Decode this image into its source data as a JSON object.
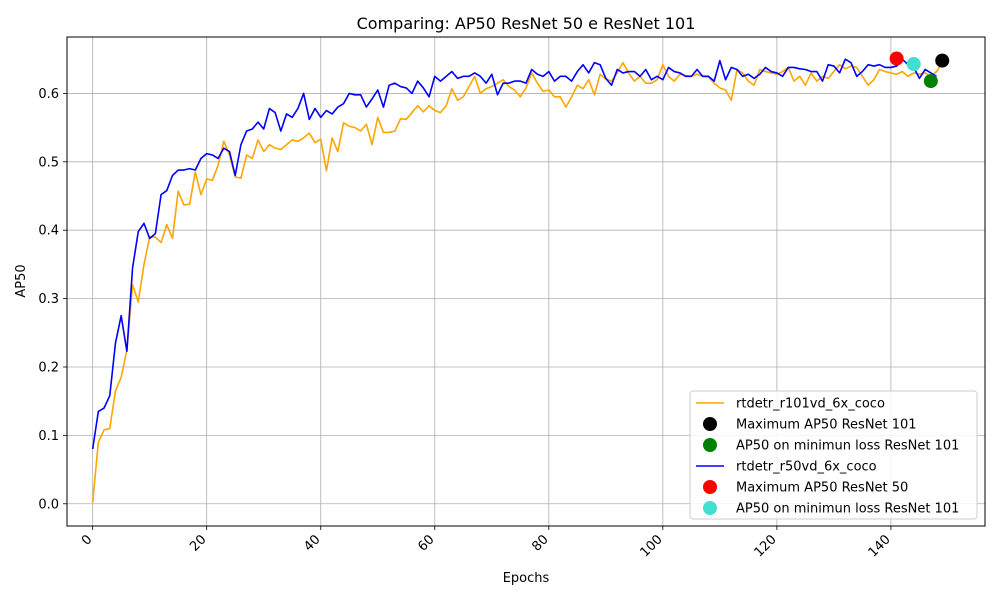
{
  "chart_data": {
    "type": "line",
    "title": "Comparing: AP50 ResNet 50 e ResNet 101",
    "xlabel": "Epochs",
    "ylabel": "AP50",
    "xlim": [
      -4.5,
      156.5
    ],
    "ylim": [
      -0.0325,
      0.6825
    ],
    "xticks": [
      0,
      20,
      40,
      60,
      80,
      100,
      120,
      140
    ],
    "yticks": [
      0.0,
      0.1,
      0.2,
      0.3,
      0.4,
      0.5,
      0.6
    ],
    "xtick_labels": [
      "0",
      "20",
      "40",
      "60",
      "80",
      "100",
      "120",
      "140"
    ],
    "ytick_labels": [
      "0.0",
      "0.1",
      "0.2",
      "0.3",
      "0.4",
      "0.5",
      "0.6"
    ],
    "grid": true,
    "legend_position": "lower-right",
    "series": [
      {
        "name": "rtdetr_r101vd_6x_coco",
        "kind": "line",
        "color": "#ffa500",
        "x": [
          0,
          1,
          2,
          3,
          4,
          5,
          6,
          7,
          8,
          9,
          10,
          11,
          12,
          13,
          14,
          15,
          16,
          17,
          18,
          19,
          20,
          21,
          22,
          23,
          24,
          25,
          26,
          27,
          28,
          29,
          30,
          31,
          32,
          33,
          34,
          35,
          36,
          37,
          38,
          39,
          40,
          41,
          42,
          43,
          44,
          45,
          46,
          47,
          48,
          49,
          50,
          51,
          52,
          53,
          54,
          55,
          56,
          57,
          58,
          59,
          60,
          61,
          62,
          63,
          64,
          65,
          66,
          67,
          68,
          69,
          70,
          71,
          72,
          73,
          74,
          75,
          76,
          77,
          78,
          79,
          80,
          81,
          82,
          83,
          84,
          85,
          86,
          87,
          88,
          89,
          90,
          91,
          92,
          93,
          94,
          95,
          96,
          97,
          98,
          99,
          100,
          101,
          102,
          103,
          104,
          105,
          106,
          107,
          108,
          109,
          110,
          111,
          112,
          113,
          114,
          115,
          116,
          117,
          118,
          119,
          120,
          121,
          122,
          123,
          124,
          125,
          126,
          127,
          128,
          129,
          130,
          131,
          132,
          133,
          134,
          135,
          136,
          137,
          138,
          139,
          140,
          141,
          142,
          143,
          144,
          145,
          146,
          147,
          148,
          149
        ],
        "values": [
          0.002,
          0.09,
          0.108,
          0.11,
          0.165,
          0.185,
          0.225,
          0.32,
          0.295,
          0.35,
          0.39,
          0.39,
          0.382,
          0.408,
          0.388,
          0.457,
          0.437,
          0.438,
          0.485,
          0.452,
          0.475,
          0.473,
          0.495,
          0.53,
          0.51,
          0.478,
          0.476,
          0.51,
          0.505,
          0.532,
          0.515,
          0.525,
          0.52,
          0.518,
          0.525,
          0.532,
          0.53,
          0.535,
          0.542,
          0.528,
          0.533,
          0.487,
          0.535,
          0.515,
          0.557,
          0.552,
          0.55,
          0.545,
          0.555,
          0.525,
          0.565,
          0.543,
          0.543,
          0.545,
          0.563,
          0.562,
          0.572,
          0.582,
          0.573,
          0.582,
          0.575,
          0.572,
          0.582,
          0.607,
          0.59,
          0.595,
          0.61,
          0.625,
          0.6,
          0.607,
          0.61,
          0.615,
          0.62,
          0.61,
          0.605,
          0.595,
          0.608,
          0.63,
          0.615,
          0.603,
          0.605,
          0.595,
          0.595,
          0.58,
          0.595,
          0.612,
          0.607,
          0.62,
          0.598,
          0.628,
          0.621,
          0.618,
          0.63,
          0.645,
          0.63,
          0.618,
          0.625,
          0.615,
          0.615,
          0.62,
          0.642,
          0.625,
          0.618,
          0.628,
          0.626,
          0.625,
          0.628,
          0.625,
          0.624,
          0.615,
          0.608,
          0.605,
          0.59,
          0.635,
          0.63,
          0.618,
          0.612,
          0.635,
          0.632,
          0.63,
          0.628,
          0.632,
          0.638,
          0.618,
          0.625,
          0.612,
          0.63,
          0.618,
          0.625,
          0.622,
          0.632,
          0.642,
          0.636,
          0.64,
          0.638,
          0.625,
          0.612,
          0.62,
          0.635,
          0.632,
          0.63,
          0.628,
          0.632,
          0.625,
          0.63,
          0.628,
          0.63,
          0.625,
          0.632,
          0.645
        ]
      },
      {
        "name": "Maximum AP50 ResNet 101",
        "kind": "point",
        "color": "#000000",
        "x": [
          149
        ],
        "values": [
          0.648
        ]
      },
      {
        "name": "AP50 on minimun loss ResNet 101",
        "kind": "point",
        "color": "#008000",
        "x": [
          147
        ],
        "values": [
          0.618
        ]
      },
      {
        "name": "rtdetr_r50vd_6x_coco",
        "kind": "line",
        "color": "#0000ff",
        "x": [
          0,
          1,
          2,
          3,
          4,
          5,
          6,
          7,
          8,
          9,
          10,
          11,
          12,
          13,
          14,
          15,
          16,
          17,
          18,
          19,
          20,
          21,
          22,
          23,
          24,
          25,
          26,
          27,
          28,
          29,
          30,
          31,
          32,
          33,
          34,
          35,
          36,
          37,
          38,
          39,
          40,
          41,
          42,
          43,
          44,
          45,
          46,
          47,
          48,
          49,
          50,
          51,
          52,
          53,
          54,
          55,
          56,
          57,
          58,
          59,
          60,
          61,
          62,
          63,
          64,
          65,
          66,
          67,
          68,
          69,
          70,
          71,
          72,
          73,
          74,
          75,
          76,
          77,
          78,
          79,
          80,
          81,
          82,
          83,
          84,
          85,
          86,
          87,
          88,
          89,
          90,
          91,
          92,
          93,
          94,
          95,
          96,
          97,
          98,
          99,
          100,
          101,
          102,
          103,
          104,
          105,
          106,
          107,
          108,
          109,
          110,
          111,
          112,
          113,
          114,
          115,
          116,
          117,
          118,
          119,
          120,
          121,
          122,
          123,
          124,
          125,
          126,
          127,
          128,
          129,
          130,
          131,
          132,
          133,
          134,
          135,
          136,
          137,
          138,
          139,
          140,
          141,
          142,
          143,
          144,
          145,
          146,
          147,
          148
        ],
        "values": [
          0.08,
          0.135,
          0.14,
          0.158,
          0.235,
          0.275,
          0.223,
          0.345,
          0.398,
          0.41,
          0.388,
          0.395,
          0.452,
          0.458,
          0.48,
          0.488,
          0.488,
          0.49,
          0.488,
          0.505,
          0.512,
          0.51,
          0.505,
          0.52,
          0.515,
          0.48,
          0.525,
          0.545,
          0.548,
          0.558,
          0.548,
          0.578,
          0.572,
          0.545,
          0.57,
          0.565,
          0.578,
          0.6,
          0.562,
          0.578,
          0.565,
          0.575,
          0.57,
          0.58,
          0.585,
          0.6,
          0.598,
          0.598,
          0.58,
          0.592,
          0.605,
          0.58,
          0.612,
          0.615,
          0.61,
          0.608,
          0.6,
          0.618,
          0.608,
          0.595,
          0.625,
          0.618,
          0.625,
          0.632,
          0.622,
          0.625,
          0.625,
          0.63,
          0.625,
          0.615,
          0.628,
          0.598,
          0.615,
          0.615,
          0.618,
          0.618,
          0.615,
          0.635,
          0.628,
          0.625,
          0.632,
          0.618,
          0.625,
          0.625,
          0.618,
          0.632,
          0.642,
          0.63,
          0.645,
          0.642,
          0.622,
          0.612,
          0.635,
          0.63,
          0.632,
          0.632,
          0.625,
          0.635,
          0.62,
          0.625,
          0.62,
          0.638,
          0.632,
          0.63,
          0.625,
          0.625,
          0.635,
          0.625,
          0.625,
          0.618,
          0.648,
          0.62,
          0.638,
          0.635,
          0.625,
          0.628,
          0.622,
          0.628,
          0.638,
          0.632,
          0.63,
          0.625,
          0.638,
          0.638,
          0.636,
          0.635,
          0.632,
          0.632,
          0.618,
          0.642,
          0.64,
          0.63,
          0.65,
          0.645,
          0.625,
          0.632,
          0.642,
          0.64,
          0.642,
          0.638,
          0.638,
          0.64,
          0.65,
          0.642,
          0.638,
          0.622,
          0.635,
          0.63,
          0.625
        ]
      },
      {
        "name": "Maximum AP50 ResNet 50",
        "kind": "point",
        "color": "#ff0000",
        "x": [
          141
        ],
        "values": [
          0.651
        ]
      },
      {
        "name": "AP50 on minimun loss ResNet 101",
        "kind": "point",
        "color": "#40e0d0",
        "x": [
          144
        ],
        "values": [
          0.643
        ]
      }
    ]
  }
}
